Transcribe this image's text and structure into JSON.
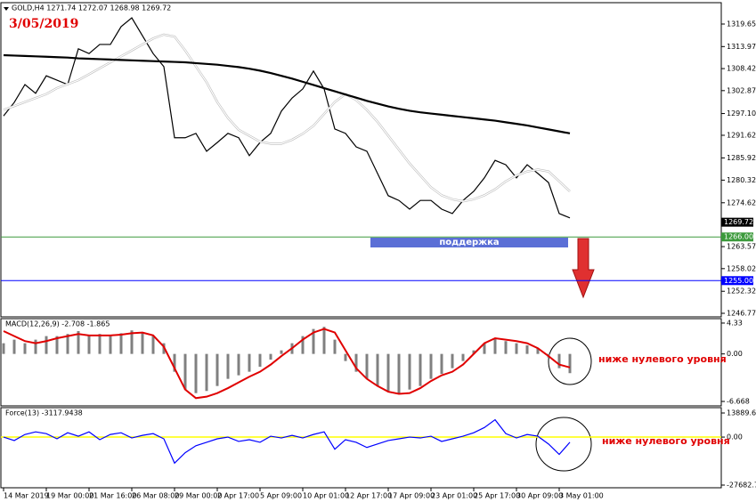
{
  "chart_data": [
    {
      "type": "line",
      "title": "GOLD,H4 1271.74 1272.07 1268.98 1269.72",
      "subtitle": "3/05/2019",
      "annotation": "поддержка",
      "categories": [
        "14 Mar 2019",
        null,
        null,
        null,
        "19 Mar 00:00",
        null,
        null,
        null,
        "21 Mar 16:00",
        null,
        null,
        null,
        "26 Mar 08:00",
        null,
        null,
        null,
        "29 Mar 00:00",
        null,
        null,
        null,
        "2 Apr 17:00",
        null,
        null,
        null,
        "5 Apr 09:00",
        null,
        null,
        null,
        "10 Apr 01:00",
        null,
        null,
        null,
        "12 Apr 17:00",
        null,
        null,
        null,
        "17 Apr 09:00",
        null,
        null,
        null,
        "23 Apr 01:00",
        null,
        null,
        null,
        "25 Apr 17:00",
        null,
        null,
        null,
        "30 Apr 09:00",
        null,
        null,
        null,
        "3 May 01:00",
        null
      ],
      "series": [
        {
          "color": "#000000",
          "width": 1.2,
          "values": [
            1296.5,
            1299.9,
            1304.4,
            1302.2,
            1306.6,
            1305.5,
            1304.4,
            1313.4,
            1312.2,
            1314.5,
            1314.5,
            1319,
            1321.2,
            1316.7,
            1312.2,
            1308.9,
            1291,
            1291,
            1292.1,
            1287.6,
            1289.8,
            1292.1,
            1291,
            1286.5,
            1289.8,
            1292.1,
            1297.7,
            1301,
            1303.3,
            1307.8,
            1303.3,
            1293.2,
            1292.1,
            1288.7,
            1287.6,
            1282,
            1276.4,
            1275.2,
            1273,
            1275.2,
            1275.2,
            1273,
            1271.9,
            1275.2,
            1277.5,
            1280.9,
            1285.3,
            1284.2,
            1280.9,
            1284.2,
            1282,
            1279.7,
            1271.9,
            1270.8
          ]
        },
        {
          "color": "#ffffff",
          "width": 1.2,
          "values": [
            1298,
            1299,
            1300,
            1301,
            1302,
            1303.5,
            1304.5,
            1305.5,
            1307,
            1308.5,
            1310,
            1311.5,
            1313,
            1314.5,
            1316,
            1317,
            1316.5,
            1313,
            1309,
            1305,
            1300,
            1296,
            1293,
            1291.5,
            1290,
            1289.5,
            1289.5,
            1290.5,
            1292,
            1294,
            1297,
            1300,
            1302,
            1300.5,
            1298,
            1295,
            1291.5,
            1288,
            1284.5,
            1281.5,
            1278.5,
            1276.5,
            1275.5,
            1275,
            1275.5,
            1276.5,
            1278,
            1280,
            1281.5,
            1282.5,
            1283,
            1282.5,
            1280,
            1277.5
          ]
        },
        {
          "color": "#000000",
          "width": 2.2,
          "values": [
            1311.8,
            1311.7,
            1311.6,
            1311.5,
            1311.4,
            1311.3,
            1311.2,
            1311,
            1310.9,
            1310.8,
            1310.7,
            1310.6,
            1310.5,
            1310.4,
            1310.3,
            1310.2,
            1310.1,
            1310,
            1309.8,
            1309.6,
            1309.4,
            1309.1,
            1308.8,
            1308.4,
            1307.9,
            1307.3,
            1306.6,
            1305.9,
            1305.1,
            1304.3,
            1303.5,
            1302.7,
            1301.9,
            1301.1,
            1300.3,
            1299.6,
            1298.9,
            1298.3,
            1297.8,
            1297.4,
            1297.1,
            1296.8,
            1296.5,
            1296.2,
            1295.9,
            1295.6,
            1295.3,
            1294.9,
            1294.5,
            1294.1,
            1293.6,
            1293.1,
            1292.6,
            1292.1
          ]
        }
      ],
      "ylim": [
        1245.87,
        1325.03
      ],
      "yticks": [
        1319.65,
        1313.97,
        1308.42,
        1302.87,
        {
          "value": 1297.1,
          "label": "1297.10"
        },
        1291.62,
        1285.92,
        1280.32,
        1274.62,
        1263.57,
        1258.02,
        1252.32,
        1246.77
      ],
      "hlines": [
        {
          "value": 1266,
          "label": "1266.00",
          "color": "#3c9a3c"
        },
        {
          "value": 1255,
          "label": "1255.00",
          "color": "#0000ff"
        }
      ],
      "last": 1269.72
    },
    {
      "type": "line",
      "title": "MACD(12,26,9) -2.708 -1.865",
      "annotation": "ниже нулевого уровня",
      "series": [
        {
          "kind": "bar",
          "color": "#808080",
          "values": [
            1.5,
            2.0,
            1.5,
            2.0,
            2.5,
            2.5,
            2.8,
            3.2,
            2.6,
            2.8,
            2.5,
            2.9,
            3.3,
            3.0,
            2.5,
            1.5,
            -2.5,
            -5.0,
            -5.5,
            -5.2,
            -4.5,
            -3.5,
            -3.0,
            -2.5,
            -1.8,
            -0.8,
            0.5,
            1.5,
            2.5,
            3.5,
            3.8,
            2.0,
            -1.0,
            -2.5,
            -3.5,
            -4.5,
            -5.2,
            -5.5,
            -5.0,
            -4.5,
            -3.5,
            -2.8,
            -2.0,
            -1.0,
            0.5,
            1.5,
            2.2,
            1.8,
            1.5,
            1.2,
            0.8,
            -0.5,
            -2.0,
            -2.7
          ]
        },
        {
          "kind": "line",
          "color": "#e00000",
          "width": 2,
          "values": [
            3.2,
            2.5,
            1.8,
            1.5,
            1.8,
            2.2,
            2.5,
            2.8,
            2.6,
            2.6,
            2.6,
            2.7,
            2.9,
            3.0,
            2.6,
            1.0,
            -2.0,
            -5.0,
            -6.2,
            -6.0,
            -5.5,
            -4.8,
            -4.0,
            -3.2,
            -2.5,
            -1.5,
            -0.3,
            0.8,
            2.0,
            3.0,
            3.5,
            3.0,
            0.5,
            -2.0,
            -3.5,
            -4.5,
            -5.3,
            -5.6,
            -5.5,
            -4.8,
            -3.8,
            -3.0,
            -2.5,
            -1.5,
            0.0,
            1.5,
            2.2,
            2.0,
            1.8,
            1.5,
            0.8,
            -0.3,
            -1.5,
            -1.9
          ]
        }
      ],
      "ylim": [
        -7.29,
        4.95
      ],
      "yticks": [
        4.33,
        {
          "value": 0,
          "label": "0.00"
        },
        -6.668
      ]
    },
    {
      "type": "line",
      "title": "Force(13) -3117.9438",
      "annotation": "ниже нулевого уровня",
      "zero_line_color": "#ffff00",
      "series": [
        {
          "kind": "line",
          "color": "#0000ff",
          "width": 1.2,
          "values": [
            0,
            -2000,
            1500,
            3000,
            2000,
            -1000,
            2500,
            500,
            3000,
            -1500,
            1500,
            2500,
            -500,
            1000,
            2000,
            -1000,
            -15000,
            -9000,
            -5000,
            -3000,
            -1000,
            0,
            -2500,
            -1500,
            -3000,
            500,
            -500,
            1000,
            -500,
            1500,
            3000,
            -7000,
            -1500,
            -3000,
            -6000,
            -4000,
            -2000,
            -1000,
            0,
            -500,
            500,
            -2500,
            -1000,
            500,
            2500,
            5500,
            10000,
            2000,
            -500,
            1500,
            500,
            -4000,
            -10000,
            -3000
          ]
        }
      ],
      "ylim": [
        -29222,
        16967
      ],
      "yticks": [
        13889.661,
        {
          "value": 0,
          "label": "0.00"
        },
        -27682.71
      ]
    }
  ]
}
